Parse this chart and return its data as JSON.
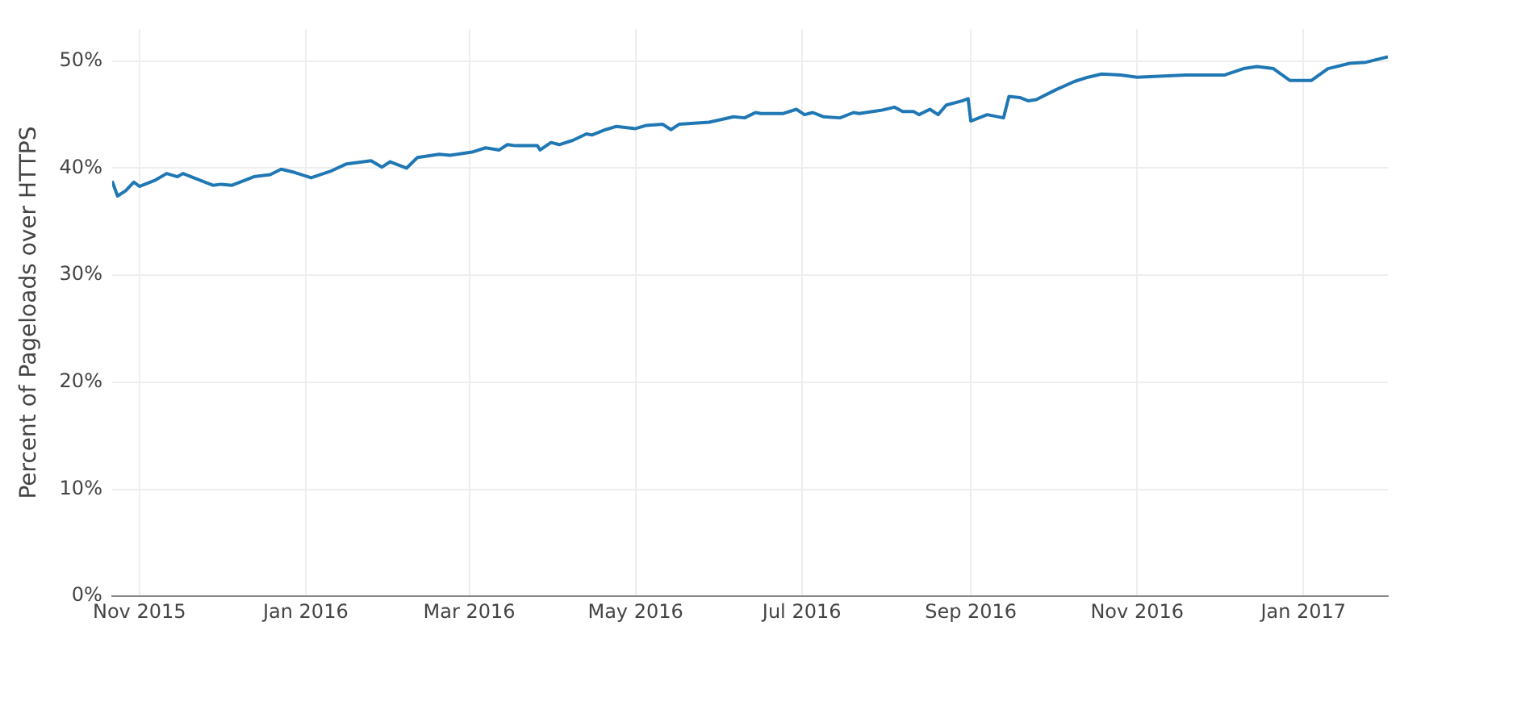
{
  "chart_data": {
    "type": "line",
    "ylabel": "Percent of Pageloads over HTTPS",
    "x": [
      "2015-10-22",
      "2015-10-24",
      "2015-10-27",
      "2015-10-30",
      "2015-11-01",
      "2015-11-07",
      "2015-11-11",
      "2015-11-15",
      "2015-11-17",
      "2015-11-28",
      "2015-12-01",
      "2015-12-05",
      "2015-12-13",
      "2015-12-19",
      "2015-12-23",
      "2015-12-28",
      "2016-01-03",
      "2016-01-10",
      "2016-01-16",
      "2016-01-25",
      "2016-01-29",
      "2016-02-01",
      "2016-02-07",
      "2016-02-11",
      "2016-02-19",
      "2016-02-23",
      "2016-03-02",
      "2016-03-07",
      "2016-03-12",
      "2016-03-15",
      "2016-03-18",
      "2016-03-26",
      "2016-03-27",
      "2016-03-31",
      "2016-04-03",
      "2016-04-08",
      "2016-04-13",
      "2016-04-15",
      "2016-04-20",
      "2016-04-24",
      "2016-05-01",
      "2016-05-05",
      "2016-05-11",
      "2016-05-14",
      "2016-05-17",
      "2016-05-28",
      "2016-06-06",
      "2016-06-10",
      "2016-06-14",
      "2016-06-16",
      "2016-06-24",
      "2016-06-29",
      "2016-07-02",
      "2016-07-05",
      "2016-07-09",
      "2016-07-15",
      "2016-07-20",
      "2016-07-22",
      "2016-07-30",
      "2016-08-04",
      "2016-08-07",
      "2016-08-11",
      "2016-08-13",
      "2016-08-17",
      "2016-08-20",
      "2016-08-23",
      "2016-08-29",
      "2016-08-31",
      "2016-09-01",
      "2016-09-07",
      "2016-09-13",
      "2016-09-15",
      "2016-09-19",
      "2016-09-22",
      "2016-09-25",
      "2016-10-02",
      "2016-10-09",
      "2016-10-14",
      "2016-10-19",
      "2016-10-26",
      "2016-11-01",
      "2016-11-09",
      "2016-11-19",
      "2016-12-03",
      "2016-12-10",
      "2016-12-15",
      "2016-12-21",
      "2016-12-27",
      "2017-01-04",
      "2017-01-10",
      "2017-01-18",
      "2017-01-24",
      "2017-02-01"
    ],
    "series": [
      {
        "color": "#1f77b4",
        "values": [
          38.8,
          37.4,
          37.9,
          38.7,
          38.3,
          38.9,
          39.5,
          39.2,
          39.5,
          38.4,
          38.5,
          38.4,
          39.2,
          39.4,
          39.9,
          39.6,
          39.1,
          39.7,
          40.4,
          40.7,
          40.1,
          40.6,
          40.0,
          41.0,
          41.3,
          41.2,
          41.5,
          41.9,
          41.7,
          42.2,
          42.1,
          42.1,
          41.7,
          42.4,
          42.2,
          42.6,
          43.2,
          43.1,
          43.6,
          43.9,
          43.7,
          44.0,
          44.1,
          43.6,
          44.1,
          44.3,
          44.8,
          44.7,
          45.2,
          45.1,
          45.1,
          45.5,
          45.0,
          45.2,
          44.8,
          44.7,
          45.2,
          45.1,
          45.4,
          45.7,
          45.3,
          45.3,
          45.0,
          45.5,
          45.0,
          45.9,
          46.3,
          46.5,
          44.4,
          45.0,
          44.7,
          46.7,
          46.6,
          46.3,
          46.4,
          47.3,
          48.1,
          48.5,
          48.8,
          48.7,
          48.5,
          48.6,
          48.7,
          48.7,
          49.3,
          49.5,
          49.3,
          48.2,
          48.2,
          49.3,
          49.8,
          49.9,
          50.4
        ]
      }
    ],
    "xlim": [
      "2015-10-22",
      "2017-02-01"
    ],
    "xticks": [
      {
        "value": "2015-11",
        "label": "Nov 2015"
      },
      {
        "value": "2016-01",
        "label": "Jan 2016"
      },
      {
        "value": "2016-03",
        "label": "Mar 2016"
      },
      {
        "value": "2016-05",
        "label": "May 2016"
      },
      {
        "value": "2016-07",
        "label": "Jul 2016"
      },
      {
        "value": "2016-09",
        "label": "Sep 2016"
      },
      {
        "value": "2016-11",
        "label": "Nov 2016"
      },
      {
        "value": "2017-01",
        "label": "Jan 2017"
      }
    ],
    "ylim": [
      0,
      53
    ],
    "yticks": [
      {
        "value": 0,
        "label": "0%"
      },
      {
        "value": 10,
        "label": "10%"
      },
      {
        "value": 20,
        "label": "20%"
      },
      {
        "value": 30,
        "label": "30%"
      },
      {
        "value": 40,
        "label": "40%"
      },
      {
        "value": 50,
        "label": "50%"
      }
    ],
    "grid": true,
    "legend": false,
    "marker": "none",
    "line_style": "solid"
  }
}
